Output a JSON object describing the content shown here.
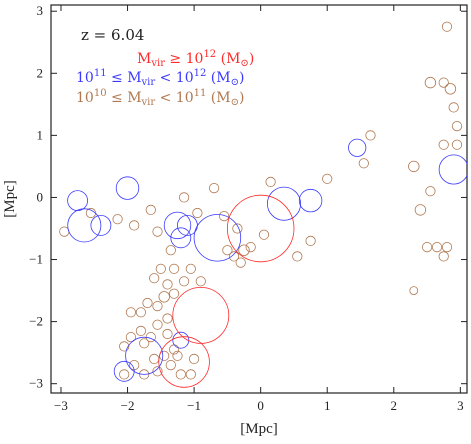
{
  "chart_data": {
    "type": "scatter",
    "title": "",
    "xlabel": "[Mpc]",
    "ylabel": "[Mpc]",
    "xlim": [
      -3.15,
      3.1
    ],
    "ylim": [
      -3.15,
      3.1
    ],
    "x_ticks": [
      -3,
      -2,
      -1,
      0,
      1,
      2,
      3
    ],
    "y_ticks": [
      -3,
      -2,
      -1,
      0,
      1,
      2,
      3
    ],
    "x_tick_labels": [
      "−3",
      "−2",
      "−1",
      "0",
      "1",
      "2",
      "3"
    ],
    "y_tick_labels": [
      "−3",
      "−2",
      "−1",
      "0",
      "1",
      "2",
      "3"
    ],
    "marker": "open-circle",
    "annotations": {
      "redshift": "z = 6.04",
      "legend": [
        {
          "name": "Mvir ≥ 10^12 (M⊙)",
          "color": "#ff2a2a"
        },
        {
          "name": "10^11 ≤ Mvir < 10^12 (M⊙)",
          "color": "#3a3aff"
        },
        {
          "name": "10^10 ≤ Mvir < 10^11 (M⊙)",
          "color": "#b07850"
        }
      ]
    },
    "series": [
      {
        "name": "Mvir ≥ 10^12 (M⊙)",
        "color": "#ff2a2a",
        "points": [
          {
            "x": 0.0,
            "y": -0.5,
            "r": 0.5
          },
          {
            "x": -0.9,
            "y": -1.9,
            "r": 0.42
          },
          {
            "x": -1.15,
            "y": -2.65,
            "r": 0.38
          }
        ]
      },
      {
        "name": "10^11 ≤ Mvir < 10^12 (M⊙)",
        "color": "#3a3aff",
        "points": [
          {
            "x": -2.75,
            "y": -0.05,
            "r": 0.15
          },
          {
            "x": -2.65,
            "y": -0.45,
            "r": 0.25
          },
          {
            "x": -2.4,
            "y": -0.45,
            "r": 0.15
          },
          {
            "x": -2.0,
            "y": 0.15,
            "r": 0.17
          },
          {
            "x": -1.25,
            "y": -0.45,
            "r": 0.2
          },
          {
            "x": -1.2,
            "y": -0.65,
            "r": 0.15
          },
          {
            "x": -1.1,
            "y": -0.45,
            "r": 0.15
          },
          {
            "x": -0.65,
            "y": -0.65,
            "r": 0.35
          },
          {
            "x": 0.35,
            "y": -0.1,
            "r": 0.25
          },
          {
            "x": 0.75,
            "y": -0.05,
            "r": 0.17
          },
          {
            "x": 1.45,
            "y": 0.8,
            "r": 0.13
          },
          {
            "x": 2.9,
            "y": 0.45,
            "r": 0.22
          },
          {
            "x": -1.75,
            "y": -2.55,
            "r": 0.28
          },
          {
            "x": -2.05,
            "y": -2.8,
            "r": 0.15
          },
          {
            "x": -1.2,
            "y": -2.3,
            "r": 0.12
          }
        ]
      },
      {
        "name": "10^10 ≤ Mvir < 10^11 (M⊙)",
        "color": "#b07850",
        "points": [
          {
            "x": 2.8,
            "y": 2.75,
            "r": 0.07
          },
          {
            "x": 2.55,
            "y": 1.85,
            "r": 0.08
          },
          {
            "x": 2.75,
            "y": 1.85,
            "r": 0.07
          },
          {
            "x": 2.85,
            "y": 1.75,
            "r": 0.08
          },
          {
            "x": 2.9,
            "y": 1.45,
            "r": 0.07
          },
          {
            "x": 2.95,
            "y": 1.15,
            "r": 0.07
          },
          {
            "x": 2.95,
            "y": 0.85,
            "r": 0.07
          },
          {
            "x": 2.75,
            "y": 0.85,
            "r": 0.07
          },
          {
            "x": 1.65,
            "y": 1.0,
            "r": 0.07
          },
          {
            "x": 2.3,
            "y": 0.5,
            "r": 0.08
          },
          {
            "x": 2.4,
            "y": -0.2,
            "r": 0.08
          },
          {
            "x": 2.55,
            "y": 0.1,
            "r": 0.07
          },
          {
            "x": 2.5,
            "y": -0.8,
            "r": 0.07
          },
          {
            "x": 2.65,
            "y": -0.8,
            "r": 0.07
          },
          {
            "x": 2.8,
            "y": -0.8,
            "r": 0.07
          },
          {
            "x": 2.75,
            "y": -0.95,
            "r": 0.07
          },
          {
            "x": 2.3,
            "y": -1.5,
            "r": 0.06
          },
          {
            "x": 1.55,
            "y": 0.55,
            "r": 0.07
          },
          {
            "x": 1.0,
            "y": 0.3,
            "r": 0.07
          },
          {
            "x": 0.15,
            "y": 0.25,
            "r": 0.07
          },
          {
            "x": -0.7,
            "y": 0.15,
            "r": 0.07
          },
          {
            "x": -1.15,
            "y": 0.0,
            "r": 0.07
          },
          {
            "x": -1.65,
            "y": -0.2,
            "r": 0.07
          },
          {
            "x": -1.9,
            "y": -0.45,
            "r": 0.07
          },
          {
            "x": -2.15,
            "y": -0.35,
            "r": 0.07
          },
          {
            "x": -2.55,
            "y": -0.25,
            "r": 0.07
          },
          {
            "x": -2.95,
            "y": -0.55,
            "r": 0.07
          },
          {
            "x": -0.35,
            "y": -0.5,
            "r": 0.07
          },
          {
            "x": -0.4,
            "y": -0.95,
            "r": 0.07
          },
          {
            "x": -0.25,
            "y": -0.85,
            "r": 0.08
          },
          {
            "x": -0.5,
            "y": -0.85,
            "r": 0.07
          },
          {
            "x": -0.3,
            "y": -1.05,
            "r": 0.07
          },
          {
            "x": -0.15,
            "y": -0.8,
            "r": 0.07
          },
          {
            "x": 0.05,
            "y": -0.6,
            "r": 0.07
          },
          {
            "x": 0.55,
            "y": -0.95,
            "r": 0.07
          },
          {
            "x": 0.75,
            "y": -0.7,
            "r": 0.07
          },
          {
            "x": -0.55,
            "y": -0.3,
            "r": 0.07
          },
          {
            "x": -0.95,
            "y": -0.25,
            "r": 0.07
          },
          {
            "x": -1.35,
            "y": -0.85,
            "r": 0.07
          },
          {
            "x": -1.55,
            "y": -0.55,
            "r": 0.07
          },
          {
            "x": -1.05,
            "y": -1.15,
            "r": 0.07
          },
          {
            "x": -1.3,
            "y": -1.15,
            "r": 0.07
          },
          {
            "x": -1.5,
            "y": -1.15,
            "r": 0.07
          },
          {
            "x": -0.9,
            "y": -1.35,
            "r": 0.07
          },
          {
            "x": -1.15,
            "y": -1.35,
            "r": 0.07
          },
          {
            "x": -1.4,
            "y": -1.4,
            "r": 0.07
          },
          {
            "x": -1.6,
            "y": -1.3,
            "r": 0.07
          },
          {
            "x": -1.3,
            "y": -1.55,
            "r": 0.07
          },
          {
            "x": -1.45,
            "y": -1.6,
            "r": 0.08
          },
          {
            "x": -1.55,
            "y": -1.75,
            "r": 0.07
          },
          {
            "x": -1.7,
            "y": -1.7,
            "r": 0.07
          },
          {
            "x": -1.8,
            "y": -1.85,
            "r": 0.07
          },
          {
            "x": -1.95,
            "y": -1.85,
            "r": 0.07
          },
          {
            "x": -1.4,
            "y": -1.95,
            "r": 0.07
          },
          {
            "x": -1.55,
            "y": -2.05,
            "r": 0.07
          },
          {
            "x": -1.65,
            "y": -2.25,
            "r": 0.07
          },
          {
            "x": -1.8,
            "y": -2.15,
            "r": 0.07
          },
          {
            "x": -1.95,
            "y": -2.25,
            "r": 0.07
          },
          {
            "x": -2.05,
            "y": -2.4,
            "r": 0.07
          },
          {
            "x": -1.75,
            "y": -2.35,
            "r": 0.07
          },
          {
            "x": -1.4,
            "y": -2.2,
            "r": 0.07
          },
          {
            "x": -1.3,
            "y": -2.45,
            "r": 0.07
          },
          {
            "x": -1.45,
            "y": -2.55,
            "r": 0.07
          },
          {
            "x": -1.6,
            "y": -2.6,
            "r": 0.07
          },
          {
            "x": -1.35,
            "y": -2.7,
            "r": 0.07
          },
          {
            "x": -1.55,
            "y": -2.8,
            "r": 0.07
          },
          {
            "x": -1.75,
            "y": -2.85,
            "r": 0.07
          },
          {
            "x": -1.9,
            "y": -2.7,
            "r": 0.07
          },
          {
            "x": -2.05,
            "y": -2.85,
            "r": 0.07
          },
          {
            "x": -1.2,
            "y": -2.85,
            "r": 0.07
          },
          {
            "x": -1.0,
            "y": -2.6,
            "r": 0.07
          },
          {
            "x": -1.05,
            "y": -2.85,
            "r": 0.07
          },
          {
            "x": -1.25,
            "y": -2.55,
            "r": 0.07
          }
        ]
      }
    ]
  }
}
